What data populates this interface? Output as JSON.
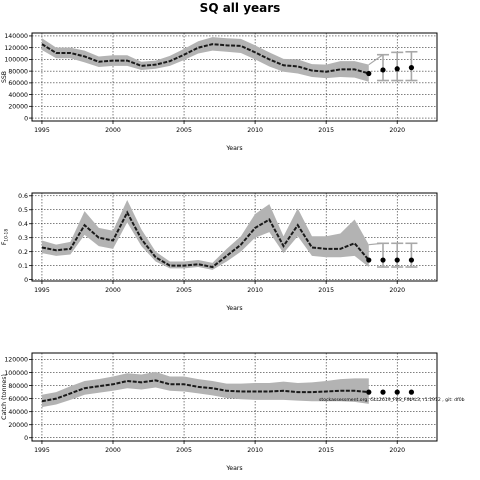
{
  "figure": {
    "title": "SQ all years",
    "source_note": "stockassessment.org, GLL2619_FBS_FINAL3, r1.1912 , git: df0b"
  },
  "chart_data": [
    {
      "type": "line",
      "ylabel": "SSB",
      "xlabel": "Years",
      "xlim": [
        1994.3,
        2022.8
      ],
      "ylim": [
        -5000,
        145000
      ],
      "x_ticks": [
        1995,
        2000,
        2005,
        2010,
        2015,
        2020
      ],
      "y_ticks": [
        0,
        20000,
        40000,
        60000,
        80000,
        100000,
        120000,
        140000
      ],
      "grid": true,
      "x": [
        1995,
        1996,
        1997,
        1998,
        1999,
        2000,
        2001,
        2002,
        2003,
        2004,
        2005,
        2006,
        2007,
        2008,
        2009,
        2010,
        2011,
        2012,
        2013,
        2014,
        2015,
        2016,
        2017,
        2018
      ],
      "values": [
        126000,
        111000,
        111000,
        105000,
        96000,
        98000,
        98000,
        89000,
        91000,
        97000,
        108000,
        120000,
        126000,
        124000,
        123000,
        112000,
        100000,
        90000,
        88000,
        81000,
        79000,
        83000,
        83000,
        76000
      ],
      "lower": [
        116000,
        102000,
        102000,
        95000,
        87000,
        89000,
        89000,
        82000,
        84000,
        89000,
        99000,
        110000,
        115000,
        113000,
        111000,
        100000,
        88000,
        79000,
        76000,
        70000,
        68000,
        70000,
        69000,
        62000
      ],
      "upper": [
        136000,
        120000,
        120000,
        115000,
        105000,
        107000,
        107000,
        96000,
        98000,
        106000,
        118000,
        131000,
        138000,
        136000,
        135000,
        124000,
        112000,
        101000,
        100000,
        92000,
        91000,
        97000,
        97000,
        91000
      ],
      "forecast_x": [
        2019,
        2020,
        2021
      ],
      "forecast_values": [
        82000,
        84000,
        86000
      ],
      "forecast_lower": [
        64000,
        64000,
        64000
      ],
      "forecast_upper": [
        108000,
        112000,
        113000
      ]
    },
    {
      "type": "line",
      "ylabel": "F",
      "ylabel_sub": "10-18",
      "xlabel": "Years",
      "xlim": [
        1994.3,
        2022.8
      ],
      "ylim": [
        -0.01,
        0.62
      ],
      "x_ticks": [
        1995,
        2000,
        2005,
        2010,
        2015,
        2020
      ],
      "y_ticks": [
        0,
        0.1,
        0.2,
        0.3,
        0.4,
        0.5,
        0.6
      ],
      "grid": true,
      "x": [
        1995,
        1996,
        1997,
        1998,
        1999,
        2000,
        2001,
        2002,
        2003,
        2004,
        2005,
        2006,
        2007,
        2008,
        2009,
        2010,
        2011,
        2012,
        2013,
        2014,
        2015,
        2016,
        2017,
        2018
      ],
      "values": [
        0.23,
        0.21,
        0.22,
        0.39,
        0.3,
        0.28,
        0.48,
        0.29,
        0.16,
        0.1,
        0.1,
        0.11,
        0.09,
        0.17,
        0.25,
        0.37,
        0.43,
        0.24,
        0.39,
        0.23,
        0.22,
        0.22,
        0.26,
        0.14
      ],
      "lower": [
        0.19,
        0.17,
        0.18,
        0.32,
        0.24,
        0.22,
        0.41,
        0.24,
        0.13,
        0.08,
        0.08,
        0.09,
        0.07,
        0.13,
        0.2,
        0.3,
        0.34,
        0.19,
        0.31,
        0.17,
        0.16,
        0.16,
        0.17,
        0.09
      ],
      "upper": [
        0.28,
        0.25,
        0.27,
        0.49,
        0.37,
        0.35,
        0.57,
        0.36,
        0.2,
        0.13,
        0.13,
        0.14,
        0.12,
        0.22,
        0.31,
        0.47,
        0.54,
        0.31,
        0.51,
        0.31,
        0.31,
        0.33,
        0.43,
        0.25
      ],
      "forecast_x": [
        2019,
        2020,
        2021
      ],
      "forecast_values": [
        0.14,
        0.14,
        0.14
      ],
      "forecast_lower": [
        0.09,
        0.09,
        0.09
      ],
      "forecast_upper": [
        0.26,
        0.26,
        0.26
      ]
    },
    {
      "type": "line",
      "ylabel": "Catch (tonnes)",
      "xlabel": "Years",
      "xlim": [
        1994.3,
        2022.8
      ],
      "ylim": [
        -5000,
        130000
      ],
      "x_ticks": [
        1995,
        2000,
        2005,
        2010,
        2015,
        2020
      ],
      "y_ticks": [
        0,
        20000,
        40000,
        60000,
        80000,
        100000,
        120000
      ],
      "grid": true,
      "x": [
        1995,
        1996,
        1997,
        1998,
        1999,
        2000,
        2001,
        2002,
        2003,
        2004,
        2005,
        2006,
        2007,
        2008,
        2009,
        2010,
        2011,
        2012,
        2013,
        2014,
        2015,
        2016,
        2017,
        2018
      ],
      "values": [
        56000,
        60000,
        68000,
        76000,
        79000,
        82000,
        87000,
        85000,
        88000,
        82000,
        82000,
        78000,
        76000,
        72000,
        71000,
        71000,
        71000,
        72000,
        70000,
        70000,
        71000,
        72000,
        72000,
        70000
      ],
      "lower": [
        47000,
        51000,
        58000,
        66000,
        69000,
        72000,
        76000,
        74000,
        77000,
        72000,
        71000,
        68000,
        65000,
        61000,
        59000,
        58000,
        58000,
        58000,
        57000,
        56000,
        56000,
        56000,
        55000,
        52000
      ],
      "upper": [
        66000,
        70000,
        79000,
        87000,
        90000,
        94000,
        99000,
        97000,
        101000,
        94000,
        94000,
        90000,
        87000,
        83000,
        83000,
        84000,
        84000,
        86000,
        84000,
        85000,
        87000,
        90000,
        91000,
        91000
      ],
      "forecast_x": [
        2019,
        2020,
        2021
      ],
      "forecast_values": [
        70000,
        70000,
        70000
      ],
      "forecast_lower": [],
      "forecast_upper": []
    }
  ]
}
